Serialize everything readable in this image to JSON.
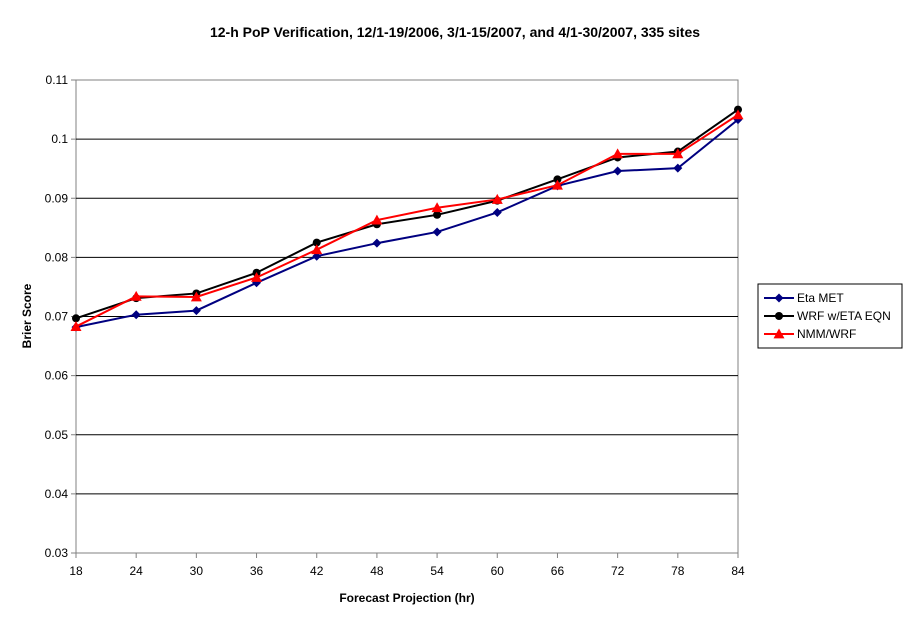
{
  "chart_data": {
    "type": "line",
    "title": "12-h PoP Verification, 12/1-19/2006, 3/1-15/2007, and 4/1-30/2007, 335 sites",
    "xlabel": "Forecast Projection (hr)",
    "ylabel": "Brier Score",
    "categories": [
      "18",
      "24",
      "30",
      "36",
      "42",
      "48",
      "54",
      "60",
      "66",
      "72",
      "78",
      "84"
    ],
    "ylim": [
      0.03,
      0.11
    ],
    "yticks": [
      "0.03",
      "0.04",
      "0.05",
      "0.06",
      "0.07",
      "0.08",
      "0.09",
      "0.1",
      "0.11"
    ],
    "grid": "horizontal",
    "legend_position": "right",
    "series": [
      {
        "name": "Eta MET",
        "color": "#000080",
        "marker": "diamond",
        "values": [
          0.0682,
          0.0703,
          0.071,
          0.0757,
          0.0802,
          0.0824,
          0.0843,
          0.0876,
          0.0921,
          0.0946,
          0.0951,
          0.1033
        ]
      },
      {
        "name": "WRF w/ETA EQN",
        "color": "#000000",
        "marker": "circle",
        "values": [
          0.0697,
          0.0731,
          0.0739,
          0.0774,
          0.0825,
          0.0856,
          0.0872,
          0.0896,
          0.0932,
          0.0969,
          0.0979,
          0.105
        ]
      },
      {
        "name": "NMM/WRF",
        "color": "#ff0000",
        "marker": "triangle",
        "values": [
          0.0683,
          0.0734,
          0.0733,
          0.0766,
          0.0813,
          0.0863,
          0.0884,
          0.0898,
          0.0922,
          0.0975,
          0.0975,
          0.1041
        ]
      }
    ]
  }
}
